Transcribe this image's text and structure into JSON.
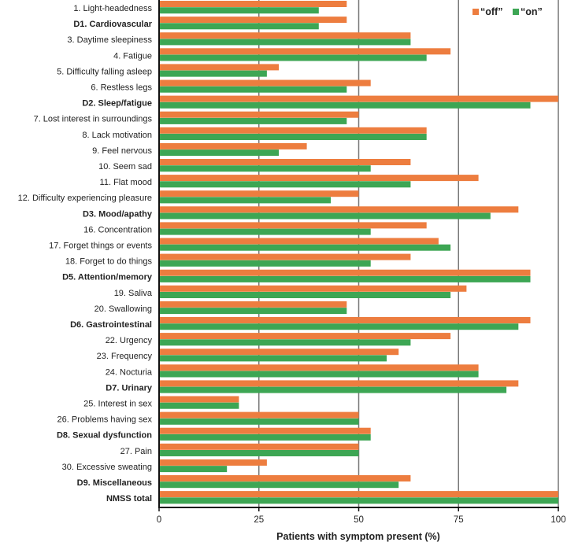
{
  "chart_data": {
    "type": "bar",
    "orientation": "horizontal",
    "xlabel": "Patients with symptom present (%)",
    "xlim": [
      0,
      100
    ],
    "xticks": [
      "0",
      "25",
      "50",
      "75",
      "100"
    ],
    "grid": "vertical",
    "legend_position": "top-right",
    "categories": [
      {
        "label": "1. Light-headedness",
        "bold": false
      },
      {
        "label": "D1. Cardiovascular",
        "bold": true
      },
      {
        "label": "3. Daytime sleepiness",
        "bold": false
      },
      {
        "label": "4. Fatigue",
        "bold": false
      },
      {
        "label": "5. Difficulty falling asleep",
        "bold": false
      },
      {
        "label": "6. Restless legs",
        "bold": false
      },
      {
        "label": "D2. Sleep/fatigue",
        "bold": true
      },
      {
        "label": "7. Lost interest in surroundings",
        "bold": false
      },
      {
        "label": "8. Lack motivation",
        "bold": false
      },
      {
        "label": "9. Feel nervous",
        "bold": false
      },
      {
        "label": "10. Seem sad",
        "bold": false
      },
      {
        "label": "11. Flat mood",
        "bold": false
      },
      {
        "label": "12. Difficulty experiencing pleasure",
        "bold": false
      },
      {
        "label": "D3. Mood/apathy",
        "bold": true
      },
      {
        "label": "16. Concentration",
        "bold": false
      },
      {
        "label": "17. Forget things or events",
        "bold": false
      },
      {
        "label": "18. Forget to do things",
        "bold": false
      },
      {
        "label": "D5. Attention/memory",
        "bold": true
      },
      {
        "label": "19. Saliva",
        "bold": false
      },
      {
        "label": "20. Swallowing",
        "bold": false
      },
      {
        "label": "D6. Gastrointestinal",
        "bold": true
      },
      {
        "label": "22. Urgency",
        "bold": false
      },
      {
        "label": "23. Frequency",
        "bold": false
      },
      {
        "label": "24. Nocturia",
        "bold": false
      },
      {
        "label": "D7. Urinary",
        "bold": true
      },
      {
        "label": "25. Interest in sex",
        "bold": false
      },
      {
        "label": "26. Problems having sex",
        "bold": false
      },
      {
        "label": "D8. Sexual dysfunction",
        "bold": true
      },
      {
        "label": "27. Pain",
        "bold": false
      },
      {
        "label": "30. Excessive sweating",
        "bold": false
      },
      {
        "label": "D9. Miscellaneous",
        "bold": true
      },
      {
        "label": "NMSS total",
        "bold": true
      }
    ],
    "series": [
      {
        "name": "“off”",
        "color": "#ED7D3F",
        "values": [
          47,
          47,
          63,
          73,
          30,
          53,
          100,
          50,
          67,
          37,
          63,
          80,
          50,
          90,
          67,
          70,
          63,
          93,
          77,
          47,
          93,
          73,
          60,
          80,
          90,
          20,
          50,
          53,
          50,
          27,
          63,
          100
        ]
      },
      {
        "name": "“on”",
        "color": "#3DA654",
        "values": [
          40,
          40,
          63,
          67,
          27,
          47,
          93,
          47,
          67,
          30,
          53,
          63,
          43,
          83,
          53,
          73,
          53,
          93,
          73,
          47,
          90,
          63,
          57,
          80,
          87,
          20,
          50,
          53,
          50,
          17,
          60,
          100
        ]
      }
    ]
  }
}
